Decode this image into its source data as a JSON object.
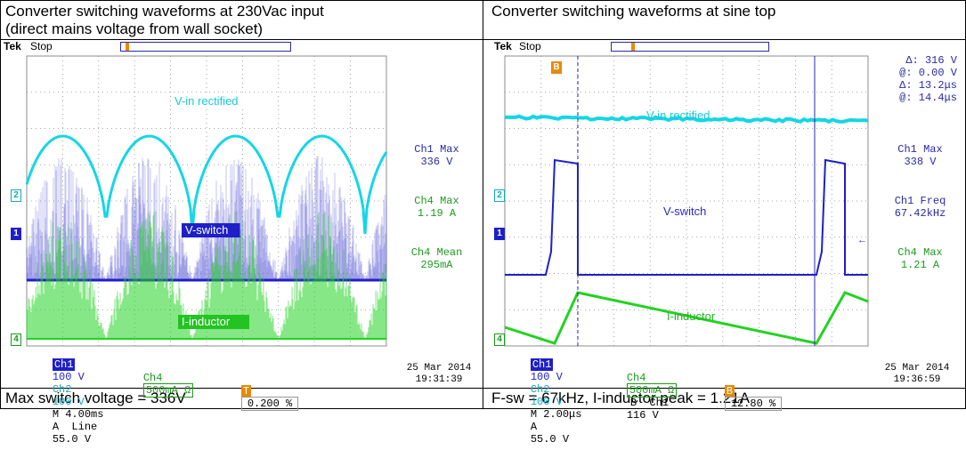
{
  "left": {
    "caption_top_line1": "Converter switching waveforms at 230Vac input",
    "caption_top_line2": "(direct mains voltage from wall socket)",
    "caption_bottom": "Max switch voltage = 336V",
    "tek": "Tek",
    "status": "Stop",
    "labels": {
      "vin": "V-in rectified",
      "vsw": "V-switch",
      "iind": "I-inductor"
    },
    "meas": [
      {
        "name": "Ch1 Max",
        "value": "336 V",
        "color": "#2a2aa8"
      },
      {
        "name": "Ch4 Max",
        "value": "1.19 A",
        "color": "#1e9a1e"
      },
      {
        "name": "Ch4 Mean",
        "value": "295mA",
        "color": "#1e9a1e"
      }
    ],
    "bar": {
      "ch1": "Ch1",
      "ch1_scale": "100 V",
      "ch2": "Ch2",
      "ch2_scale": "100 V",
      "time": "M 4.00ms",
      "trig_src": "A  Line",
      "trig_level": "55.0 V",
      "ch4": "Ch4",
      "ch4_scale": "500mA Ω",
      "trig_pos": "0.200 %",
      "date": "25 Mar  2014",
      "time_of_day": "19:31:39"
    },
    "markers": {
      "ch2": "2",
      "ch1": "1",
      "ch4": "4",
      "trig": "T"
    }
  },
  "right": {
    "caption_top": "Converter switching waveforms at sine top",
    "caption_bottom": "F-sw = 67kHz, I-inductor peak = 1.21A",
    "tek": "Tek",
    "status": "Stop",
    "labels": {
      "vin": "V-in rectified",
      "vsw": "V-switch",
      "iind": "I-inductor"
    },
    "cursors": [
      {
        "sym": "Δ:",
        "value": "316 V"
      },
      {
        "sym": "@:",
        "value": "0.00 V"
      },
      {
        "sym": "Δ:",
        "value": "13.2μs"
      },
      {
        "sym": "@:",
        "value": "14.4μs"
      }
    ],
    "meas": [
      {
        "name": "Ch1 Max",
        "value": "338 V",
        "color": "#2a2aa8"
      },
      {
        "name": "Ch1 Freq",
        "value": "67.42kHz",
        "color": "#2a2aa8"
      },
      {
        "name": "Ch4 Max",
        "value": "1.21 A",
        "color": "#1e9a1e"
      }
    ],
    "bar": {
      "ch1": "Ch1",
      "ch1_scale": "100 V",
      "ch2": "Ch2",
      "ch2_scale": "100 V",
      "time": "M 2.00μs",
      "trig_src": "A",
      "trig_level": "55.0 V",
      "ch4": "Ch4",
      "ch4_scale": "500mA Ω",
      "trig_b": "B  Ch1",
      "trig_b_level": "116 V",
      "trig_pos": "12.80 %",
      "date": "25 Mar  2014",
      "time_of_day": "19:36:59"
    },
    "markers": {
      "ch2": "2",
      "ch1": "1",
      "ch4": "4",
      "trig": "B"
    }
  },
  "colors": {
    "ch1": "#1f1fc8",
    "ch2": "#14d6e6",
    "ch4": "#22d322",
    "grid": "#8c8c8c"
  },
  "chart_data": [
    {
      "type": "line",
      "title": "Converter switching waveforms at 230Vac input",
      "timebase": "4.00ms/div",
      "series": [
        {
          "name": "V-in rectified",
          "channel": "Ch2",
          "scale": "100 V/div"
        },
        {
          "name": "V-switch",
          "channel": "Ch1",
          "scale": "100 V/div",
          "max": "336 V"
        },
        {
          "name": "I-inductor",
          "channel": "Ch4",
          "scale": "500mA/div",
          "max": "1.19 A",
          "mean": "295mA"
        }
      ]
    },
    {
      "type": "line",
      "title": "Converter switching waveforms at sine top",
      "timebase": "2.00μs/div",
      "series": [
        {
          "name": "V-in rectified",
          "channel": "Ch2",
          "scale": "100 V/div"
        },
        {
          "name": "V-switch",
          "channel": "Ch1",
          "scale": "100 V/div",
          "max": "338 V",
          "freq": "67.42kHz"
        },
        {
          "name": "I-inductor",
          "channel": "Ch4",
          "scale": "500mA/div",
          "max": "1.21 A"
        }
      ]
    }
  ]
}
